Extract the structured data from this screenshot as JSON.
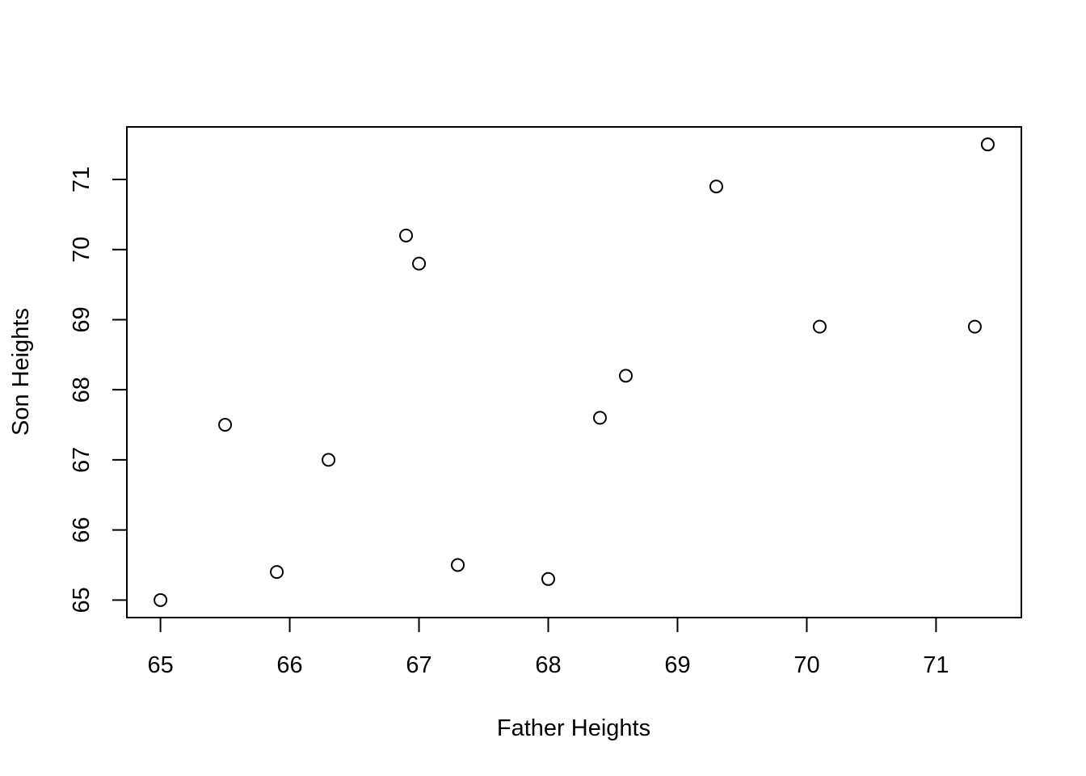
{
  "chart_data": {
    "type": "scatter",
    "title": "",
    "xlabel": "Father Heights",
    "ylabel": "Son Heights",
    "xlim": [
      64.74,
      71.66
    ],
    "ylim": [
      64.75,
      71.75
    ],
    "x_ticks": [
      65,
      66,
      67,
      68,
      69,
      70,
      71
    ],
    "y_ticks": [
      65,
      66,
      67,
      68,
      69,
      70,
      71
    ],
    "grid": false,
    "legend": "none",
    "marker": "open-circle",
    "points": [
      {
        "x": 65.0,
        "y": 65.0
      },
      {
        "x": 65.5,
        "y": 67.5
      },
      {
        "x": 65.9,
        "y": 65.4
      },
      {
        "x": 66.3,
        "y": 67.0
      },
      {
        "x": 66.9,
        "y": 70.2
      },
      {
        "x": 67.0,
        "y": 69.8
      },
      {
        "x": 67.3,
        "y": 65.5
      },
      {
        "x": 68.0,
        "y": 65.3
      },
      {
        "x": 68.4,
        "y": 67.6
      },
      {
        "x": 68.6,
        "y": 68.2
      },
      {
        "x": 69.3,
        "y": 70.9
      },
      {
        "x": 70.1,
        "y": 68.9
      },
      {
        "x": 71.3,
        "y": 68.9
      },
      {
        "x": 71.4,
        "y": 71.5
      }
    ]
  }
}
